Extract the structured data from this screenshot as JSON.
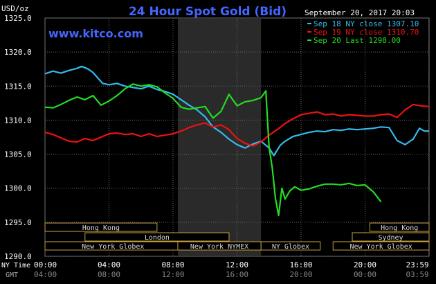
{
  "header": {
    "title": "24 Hour Spot Gold (Bid)",
    "website": "www.kitco.com",
    "timestamp": "September 20, 2017 20:03",
    "y_unit": "USD/oz"
  },
  "legend": [
    {
      "label": "Sep 18 NY close 1307.10",
      "color": "#33bbee"
    },
    {
      "label": "Sep 19 NY close 1310.70",
      "color": "#ee1111"
    },
    {
      "label": "Sep 20 Last 1298.00",
      "color": "#22dd22"
    }
  ],
  "axis_labels": {
    "ny_time": "NY Time",
    "gmt": "GMT"
  },
  "sessions": [
    {
      "label": "Hong Kong",
      "row": 0,
      "start_h": 0,
      "end_h": 7
    },
    {
      "label": "London",
      "row": 1,
      "start_h": 2.5,
      "end_h": 11.5
    },
    {
      "label": "New York Globex",
      "row": 2,
      "start_h": 0,
      "end_h": 8.5
    },
    {
      "label": "New York NYMEX",
      "row": 2,
      "start_h": 8.3,
      "end_h": 13.5
    },
    {
      "label": "NY Globex",
      "row": 2,
      "start_h": 13.5,
      "end_h": 17.2
    },
    {
      "label": "Hong Kong",
      "row": 0,
      "start_h": 20.3,
      "end_h": 24
    },
    {
      "label": "Sydney",
      "row": 1,
      "start_h": 19.2,
      "end_h": 24
    },
    {
      "label": "New York Globex",
      "row": 2,
      "start_h": 18,
      "end_h": 24
    }
  ],
  "chart_data": {
    "type": "line",
    "title": "24 Hour Spot Gold (Bid)",
    "ylabel": "USD/oz",
    "ylim": [
      1290,
      1325
    ],
    "xlim": [
      0,
      24
    ],
    "y_ticks": [
      "1325.0",
      "1320.0",
      "1315.0",
      "1310.0",
      "1305.0",
      "1300.0",
      "1295.0",
      "1290.0"
    ],
    "x_ticks_ny": [
      "00:00",
      "04:00",
      "08:00",
      "12:00",
      "16:00",
      "20:00",
      "23:59"
    ],
    "x_ticks_gmt": [
      "04:00",
      "08:00",
      "12:00",
      "16:00",
      "20:00",
      "00:00",
      "03:59"
    ],
    "shaded_region_hours": [
      8.3,
      13.5
    ],
    "series": [
      {
        "name": "Sep 18 NY close 1307.10",
        "color": "#33bbee",
        "points": [
          [
            0,
            1316.8
          ],
          [
            0.5,
            1317.2
          ],
          [
            1,
            1316.9
          ],
          [
            1.5,
            1317.3
          ],
          [
            2,
            1317.6
          ],
          [
            2.3,
            1317.9
          ],
          [
            2.7,
            1317.5
          ],
          [
            3,
            1317.0
          ],
          [
            3.3,
            1316.2
          ],
          [
            3.6,
            1315.4
          ],
          [
            4,
            1315.2
          ],
          [
            4.5,
            1315.4
          ],
          [
            5,
            1315.0
          ],
          [
            5.5,
            1314.8
          ],
          [
            6,
            1314.6
          ],
          [
            6.5,
            1315.0
          ],
          [
            7,
            1314.5
          ],
          [
            7.5,
            1314.2
          ],
          [
            8,
            1313.8
          ],
          [
            8.5,
            1313.0
          ],
          [
            9,
            1312.2
          ],
          [
            9.5,
            1311.5
          ],
          [
            10,
            1310.5
          ],
          [
            10.5,
            1309.0
          ],
          [
            11,
            1308.2
          ],
          [
            11.5,
            1307.2
          ],
          [
            12,
            1306.4
          ],
          [
            12.5,
            1305.9
          ],
          [
            13,
            1306.5
          ],
          [
            13.5,
            1306.9
          ],
          [
            14,
            1305.9
          ],
          [
            14.3,
            1304.8
          ],
          [
            14.7,
            1306.3
          ],
          [
            15,
            1306.9
          ],
          [
            15.5,
            1307.6
          ],
          [
            16,
            1307.9
          ],
          [
            16.5,
            1308.2
          ],
          [
            17,
            1308.4
          ],
          [
            17.5,
            1308.3
          ],
          [
            18,
            1308.6
          ],
          [
            18.5,
            1308.5
          ],
          [
            19,
            1308.7
          ],
          [
            19.5,
            1308.6
          ],
          [
            20,
            1308.7
          ],
          [
            20.5,
            1308.8
          ],
          [
            21,
            1309.0
          ],
          [
            21.5,
            1308.9
          ],
          [
            22,
            1307.0
          ],
          [
            22.5,
            1306.4
          ],
          [
            23,
            1307.2
          ],
          [
            23.4,
            1308.8
          ],
          [
            23.7,
            1308.4
          ],
          [
            24,
            1308.4
          ]
        ]
      },
      {
        "name": "Sep 19 NY close 1310.70",
        "color": "#ee1111",
        "points": [
          [
            0,
            1308.2
          ],
          [
            0.5,
            1307.9
          ],
          [
            1,
            1307.4
          ],
          [
            1.5,
            1306.9
          ],
          [
            2,
            1306.8
          ],
          [
            2.5,
            1307.3
          ],
          [
            3,
            1307.0
          ],
          [
            3.5,
            1307.5
          ],
          [
            4,
            1308.0
          ],
          [
            4.5,
            1308.1
          ],
          [
            5,
            1307.9
          ],
          [
            5.5,
            1308.0
          ],
          [
            6,
            1307.6
          ],
          [
            6.5,
            1308.0
          ],
          [
            7,
            1307.6
          ],
          [
            7.5,
            1307.8
          ],
          [
            8,
            1308.0
          ],
          [
            8.5,
            1308.4
          ],
          [
            9,
            1308.9
          ],
          [
            9.5,
            1309.3
          ],
          [
            10,
            1309.6
          ],
          [
            10.5,
            1309.0
          ],
          [
            11,
            1309.3
          ],
          [
            11.5,
            1308.6
          ],
          [
            12,
            1307.3
          ],
          [
            12.5,
            1306.6
          ],
          [
            13,
            1306.2
          ],
          [
            13.5,
            1306.8
          ],
          [
            14,
            1307.8
          ],
          [
            14.5,
            1308.6
          ],
          [
            15,
            1309.5
          ],
          [
            15.5,
            1310.2
          ],
          [
            16,
            1310.8
          ],
          [
            16.5,
            1311.0
          ],
          [
            17,
            1311.2
          ],
          [
            17.5,
            1310.8
          ],
          [
            18,
            1310.9
          ],
          [
            18.5,
            1310.6
          ],
          [
            19,
            1310.8
          ],
          [
            19.5,
            1310.7
          ],
          [
            20,
            1310.6
          ],
          [
            20.5,
            1310.6
          ],
          [
            21,
            1310.8
          ],
          [
            21.5,
            1310.9
          ],
          [
            22,
            1310.4
          ],
          [
            22.5,
            1311.5
          ],
          [
            23,
            1312.3
          ],
          [
            23.5,
            1312.1
          ],
          [
            24,
            1312.0
          ]
        ]
      },
      {
        "name": "Sep 20 Last 1298.00",
        "color": "#22dd22",
        "points": [
          [
            0,
            1311.9
          ],
          [
            0.5,
            1311.8
          ],
          [
            1,
            1312.3
          ],
          [
            1.5,
            1312.9
          ],
          [
            2,
            1313.4
          ],
          [
            2.5,
            1313.0
          ],
          [
            3,
            1313.6
          ],
          [
            3.5,
            1312.2
          ],
          [
            4,
            1312.8
          ],
          [
            4.5,
            1313.6
          ],
          [
            5,
            1314.6
          ],
          [
            5.5,
            1315.3
          ],
          [
            6,
            1315.0
          ],
          [
            6.5,
            1315.2
          ],
          [
            7,
            1314.9
          ],
          [
            7.5,
            1314.0
          ],
          [
            8,
            1313.2
          ],
          [
            8.5,
            1311.9
          ],
          [
            9,
            1311.6
          ],
          [
            9.5,
            1311.8
          ],
          [
            10,
            1312.0
          ],
          [
            10.5,
            1310.3
          ],
          [
            11,
            1311.3
          ],
          [
            11.5,
            1313.8
          ],
          [
            12,
            1312.1
          ],
          [
            12.5,
            1312.7
          ],
          [
            13,
            1312.9
          ],
          [
            13.5,
            1313.3
          ],
          [
            13.8,
            1314.3
          ],
          [
            14,
            1306.0
          ],
          [
            14.2,
            1303.0
          ],
          [
            14.4,
            1298.5
          ],
          [
            14.6,
            1296.0
          ],
          [
            14.8,
            1300.0
          ],
          [
            15,
            1298.4
          ],
          [
            15.3,
            1299.6
          ],
          [
            15.6,
            1300.2
          ],
          [
            16,
            1299.7
          ],
          [
            16.5,
            1299.9
          ],
          [
            17,
            1300.3
          ],
          [
            17.5,
            1300.6
          ],
          [
            18,
            1300.6
          ],
          [
            18.5,
            1300.5
          ],
          [
            19,
            1300.7
          ],
          [
            19.5,
            1300.4
          ],
          [
            20,
            1300.5
          ],
          [
            20.5,
            1299.5
          ],
          [
            21,
            1298.0
          ]
        ]
      }
    ]
  }
}
